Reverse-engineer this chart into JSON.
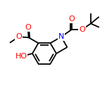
{
  "bg_color": "#ffffff",
  "bond_color": "#000000",
  "bond_width": 1.3,
  "atom_colors": {
    "O": "#ff0000",
    "N": "#0000ff",
    "C": "#000000"
  },
  "font_size": 7,
  "figsize": [
    1.52,
    1.52
  ],
  "dpi": 100
}
